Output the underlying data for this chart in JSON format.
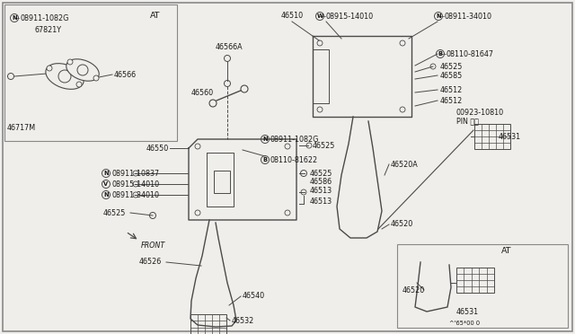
{
  "bg_color": "#f0eeea",
  "line_color": "#4a4a4a",
  "text_color": "#1a1a1a",
  "fs": 5.8,
  "labels": {
    "N08911_1082G_top": "08911-1082G",
    "AT_top": "AT",
    "67821Y": "67821Y",
    "46566": "46566",
    "46717M": "46717M",
    "46566A": "46566A",
    "46550": "46550",
    "46560": "46560",
    "N08911_1082G_mid": "08911-1082G",
    "N08911_10837": "08911-10837",
    "V08915_14010_left": "08915-14010",
    "N08911_34010_left": "08911-34010",
    "46525": "46525",
    "46586": "46586",
    "46513a": "46513",
    "46513b": "46513",
    "46526": "46526",
    "46540": "46540",
    "46532": "46532",
    "B08110_81622": "08110-81622",
    "46510": "46510",
    "W08915_14010": "08915-14010",
    "N08911_34010_right": "08911-34010",
    "B08110_81647": "08110-81647",
    "46585": "46585",
    "46512a": "46512",
    "46512b": "46512",
    "00923_10810": "00923-10810",
    "PIN": "PIN ピン",
    "46531_right": "46531",
    "46520A": "46520A",
    "46520_main": "46520",
    "FRONT": "FRONT",
    "AT_bot": "AT",
    "46520_AT": "46520",
    "46531_AT": "46531",
    "note": "^'65*00 0"
  }
}
